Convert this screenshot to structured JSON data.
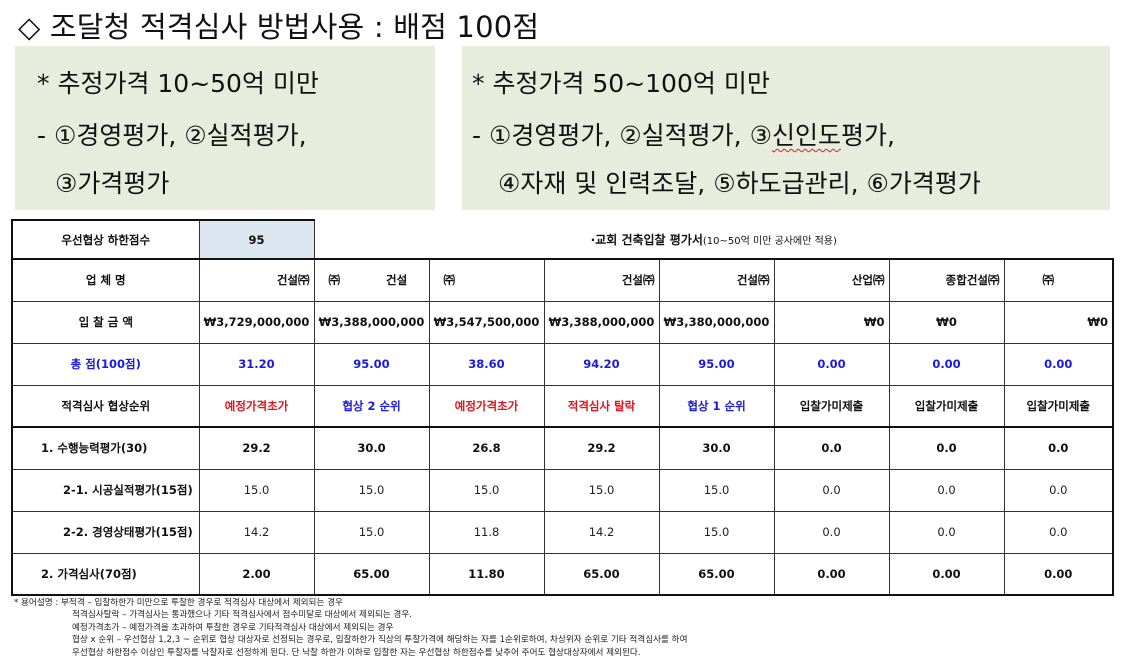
{
  "title": "◇ 조달청 적격심사 방법사용 : 배점 100점",
  "left_box": {
    "line1": "* 추정가격 10~50억 미만",
    "line2": "- ①경영평가, ②실적평가,",
    "line3": "③가격평가"
  },
  "right_box": {
    "line1": "* 추정가격 50~100억 미만",
    "line2_a": "- ①경영평가, ②실적평가, ③",
    "line2_b": "신인도",
    "line2_c": "평가,",
    "line3": "④자재 및 인력조달, ⑤하도급관리, ⑥가격평가"
  },
  "table": {
    "threshold_label": "우선협상 하한점수",
    "threshold_value": "95",
    "table_title": "·교회 건축입찰 평가서",
    "table_title_note": "(10~50억 미만 공사에만 적용)",
    "company_row_label": "업 체 명",
    "companies": [
      {
        "pre": "",
        "post": "건설㈜"
      },
      {
        "pre": "㈜",
        "post": "건설"
      },
      {
        "pre": "㈜",
        "post": ""
      },
      {
        "pre": "",
        "post": "건설㈜"
      },
      {
        "pre": "",
        "post": "건설㈜"
      },
      {
        "pre": "",
        "post": "산업㈜"
      },
      {
        "pre": "",
        "post": "종합건설㈜"
      },
      {
        "pre": "㈜",
        "post": ""
      }
    ],
    "bid_label": "입 찰 금 액",
    "bids": [
      "₩3,729,000,000",
      "₩3,388,000,000",
      "₩3,547,500,000",
      "₩3,388,000,000",
      "₩3,380,000,000",
      "₩0",
      "₩0",
      "₩0"
    ],
    "total_label": "총 점(100점)",
    "totals": [
      "31.20",
      "95.00",
      "38.60",
      "94.20",
      "95.00",
      "0.00",
      "0.00",
      "0.00"
    ],
    "rank_label": "적격심사 협상순위",
    "ranks": [
      {
        "text": "예정가격초가",
        "color": "red"
      },
      {
        "text": "협상 2 순위",
        "color": "blue"
      },
      {
        "text": "예정가격초가",
        "color": "red"
      },
      {
        "text": "적격심사 탈락",
        "color": "red"
      },
      {
        "text": "협상 1 순위",
        "color": "blue"
      },
      {
        "text": "입찰가미제출",
        "color": "black"
      },
      {
        "text": "입찰가미제출",
        "color": "black"
      },
      {
        "text": "입찰가미제출",
        "color": "black"
      }
    ],
    "perf_label": "1. 수행능력평가(30)",
    "perf": [
      "29.2",
      "30.0",
      "26.8",
      "29.2",
      "30.0",
      "0.0",
      "0.0",
      "0.0"
    ],
    "sub1_label": "2-1. 시공실적평가(15점)",
    "sub1": [
      "15.0",
      "15.0",
      "15.0",
      "15.0",
      "15.0",
      "0.0",
      "0.0",
      "0.0"
    ],
    "sub2_label": "2-2. 경영상태평가(15점)",
    "sub2": [
      "14.2",
      "15.0",
      "11.8",
      "14.2",
      "15.0",
      "0.0",
      "0.0",
      "0.0"
    ],
    "price_label": "2. 가격심사(70점)",
    "price": [
      "2.00",
      "65.00",
      "11.80",
      "65.00",
      "65.00",
      "0.00",
      "0.00",
      "0.00"
    ]
  },
  "notes": [
    "* 용어설명 : 부적격 – 입찰하한가 미만으로 투찰한 경우로 적격심사 대상에서 제외되는 경우",
    "적격심사탈락 – 가격심사는 통과했으나 기타 적격심사에서 점수미달로 대상에서 제외되는 경우.",
    "예정가격초가 – 예정가격을 초과하여 투찰한 경우로 기타적격심사 대상에서 제외되는 경우",
    "협상 x 순위 – 우선협상 1,2,3 ~ 순위로 협상 대상자로 선정되는 경우로, 입찰하한가 직상의 투찰가격에 해당하는 자를 1순위로하여, 차상위자 순위로 기타 적격심사를 하여",
    "우선협상 하한점수 이상인 투찰자를 낙찰자로 선정하게 된다. 단 낙찰 하한가 이하로 입찰한 자는 우선협상 하한점수를 낮추어 주어도 협상대상자에서 제외된다."
  ],
  "colors": {
    "box_bg": "#e7ecdd",
    "shade": "#dce6f1",
    "blue": "#1a1ae0",
    "red": "#e0141e"
  }
}
